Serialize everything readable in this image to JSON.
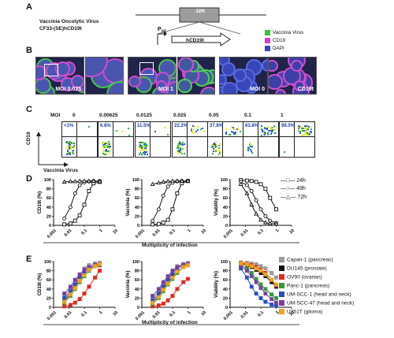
{
  "panelA": {
    "letter": "A",
    "virus_line1": "Vaccinia Oncolytic Virus",
    "virus_line2": "CF33-(SE)hCD19t",
    "gene": "J2R",
    "promoter_main": "P",
    "promoter_sub": "SE",
    "transgene": "hCD19t",
    "legend": [
      {
        "label": "Vaccinia Virus",
        "color": "#39c13c"
      },
      {
        "label": "CD19",
        "color": "#d63bd1"
      },
      {
        "label": "DAPI",
        "color": "#2f44c8"
      }
    ]
  },
  "panelB": {
    "letter": "B",
    "images": [
      "MOI 0.025",
      "",
      "MOI 1",
      "",
      "MOI 0",
      "CD19t"
    ]
  },
  "panelC": {
    "letter": "C",
    "moi_label": "MOI",
    "mois": [
      "0",
      "0.00625",
      "0.0125",
      "0.025",
      "0.05",
      "0.1",
      "1"
    ],
    "percents": [
      "<1%",
      "6.8%",
      "11.5%",
      "22.2%",
      "37.8%",
      "63.8%",
      "98.0%"
    ],
    "ylabel": "CD19",
    "xlabel": "Vaccinia Virus"
  },
  "panelD": {
    "letter": "D",
    "xlabel": "Multiplicity of infection",
    "legend": [
      "24h",
      "48h",
      "72h"
    ]
  },
  "panelE": {
    "letter": "E",
    "xlabel": "Multiplicity of infection",
    "legend": [
      {
        "label": "Capan-1 (pancreas)",
        "color": "#9a9a9a"
      },
      {
        "label": "DU145 (prostate)",
        "color": "#111111"
      },
      {
        "label": "OV90 (ovarian)",
        "color": "#e0281e"
      },
      {
        "label": "Panc-1 (pancreas)",
        "color": "#2e9b3a"
      },
      {
        "label": "UM-SCC-1 (head and neck)",
        "color": "#2a4fc0"
      },
      {
        "label": "UM-SCC-47 (head and neck)",
        "color": "#7b3fa0"
      },
      {
        "label": "U251T (glioma)",
        "color": "#f0a21c"
      }
    ]
  },
  "chart_data": [
    {
      "type": "line",
      "panel": "D",
      "ylabel": "CD19t (%)",
      "xlabel": "Multiplicity of infection",
      "xscale": "log",
      "xlim": [
        0.001,
        10
      ],
      "ylim": [
        0,
        100
      ],
      "xticks": [
        "0.001",
        "0.01",
        "0.1",
        "1",
        "10"
      ],
      "yticks": [
        0,
        20,
        40,
        60,
        80,
        100
      ],
      "x": [
        0.005,
        0.0125,
        0.025,
        0.05,
        0.1,
        0.2,
        0.4,
        1
      ],
      "series": [
        {
          "name": "24h",
          "marker": "square",
          "values": [
            2,
            4,
            10,
            22,
            45,
            75,
            92,
            95
          ]
        },
        {
          "name": "48h",
          "marker": "circle",
          "values": [
            15,
            40,
            70,
            88,
            94,
            96,
            97,
            97
          ]
        },
        {
          "name": "72h",
          "marker": "triangle",
          "values": [
            95,
            96,
            96,
            97,
            97,
            97,
            97,
            96
          ]
        }
      ]
    },
    {
      "type": "line",
      "panel": "D",
      "ylabel": "Vaccinia (%)",
      "xlabel": "Multiplicity of infection",
      "xscale": "log",
      "xlim": [
        0.001,
        10
      ],
      "ylim": [
        0,
        100
      ],
      "xticks": [
        "0.001",
        "0.01",
        "0.1",
        "1",
        "10"
      ],
      "yticks": [
        0,
        20,
        40,
        60,
        80,
        100
      ],
      "x": [
        0.005,
        0.0125,
        0.025,
        0.05,
        0.1,
        0.2,
        0.4,
        1
      ],
      "series": [
        {
          "name": "24h",
          "marker": "square",
          "values": [
            2,
            3,
            6,
            12,
            35,
            70,
            92,
            97
          ]
        },
        {
          "name": "48h",
          "marker": "circle",
          "values": [
            10,
            35,
            65,
            85,
            93,
            96,
            97,
            97
          ]
        },
        {
          "name": "72h",
          "marker": "triangle",
          "values": [
            90,
            93,
            95,
            96,
            97,
            97,
            97,
            97
          ]
        }
      ]
    },
    {
      "type": "line",
      "panel": "D",
      "ylabel": "Viability (%)",
      "xlabel": "Multiplicity of infection",
      "xscale": "log",
      "xlim": [
        0.001,
        10
      ],
      "ylim": [
        0,
        100
      ],
      "xticks": [
        "0.001",
        "0.01",
        "0.1",
        "1",
        "10"
      ],
      "yticks": [
        0,
        20,
        40,
        60,
        80,
        100
      ],
      "x": [
        0.005,
        0.0125,
        0.025,
        0.05,
        0.1,
        0.2,
        0.4,
        1
      ],
      "series": [
        {
          "name": "24h",
          "marker": "square",
          "values": [
            99,
            98,
            97,
            95,
            90,
            80,
            60,
            35
          ]
        },
        {
          "name": "48h",
          "marker": "circle",
          "values": [
            95,
            88,
            75,
            55,
            35,
            20,
            10,
            5
          ]
        },
        {
          "name": "72h",
          "marker": "triangle",
          "values": [
            90,
            70,
            45,
            25,
            12,
            6,
            4,
            3
          ]
        }
      ]
    },
    {
      "type": "line",
      "panel": "E",
      "ylabel": "CD19t (%)",
      "xlabel": "Multiplicity of infection",
      "xscale": "log",
      "xlim": [
        0.001,
        10
      ],
      "ylim": [
        0,
        100
      ],
      "xticks": [
        "0.001",
        "0.01",
        "0.1",
        "1",
        "10"
      ],
      "yticks": [
        0,
        20,
        40,
        60,
        80,
        100
      ],
      "x": [
        0.005,
        0.0125,
        0.025,
        0.05,
        0.1,
        0.2,
        0.5,
        1
      ],
      "series": [
        {
          "name": "Capan-1 (pancreas)",
          "values": [
            25,
            40,
            55,
            70,
            85,
            92,
            96,
            97
          ]
        },
        {
          "name": "DU145 (prostate)",
          "values": [
            15,
            30,
            45,
            60,
            72,
            80,
            90,
            92
          ]
        },
        {
          "name": "OV90 (ovarian)",
          "values": [
            2,
            5,
            10,
            18,
            30,
            45,
            65,
            80
          ]
        },
        {
          "name": "Panc-1 (pancreas)",
          "values": [
            10,
            25,
            40,
            55,
            68,
            80,
            90,
            93
          ]
        },
        {
          "name": "UM-SCC-1 (head and neck)",
          "values": [
            20,
            35,
            50,
            65,
            78,
            85,
            92,
            95
          ]
        },
        {
          "name": "UM-SCC-47 (head and neck)",
          "values": [
            30,
            45,
            60,
            72,
            82,
            88,
            93,
            95
          ]
        },
        {
          "name": "U251T (glioma)",
          "values": [
            12,
            28,
            42,
            58,
            70,
            82,
            90,
            94
          ]
        }
      ]
    },
    {
      "type": "line",
      "panel": "E",
      "ylabel": "Vaccinia (%)",
      "xlabel": "Multiplicity of infection",
      "xscale": "log",
      "xlim": [
        0.001,
        10
      ],
      "ylim": [
        0,
        100
      ],
      "xticks": [
        "0.001",
        "0.01",
        "0.1",
        "1",
        "10"
      ],
      "yticks": [
        0,
        20,
        40,
        60,
        80,
        100
      ],
      "x": [
        0.005,
        0.0125,
        0.025,
        0.05,
        0.1,
        0.2,
        0.5,
        1
      ],
      "series": [
        {
          "name": "Capan-1 (pancreas)",
          "values": [
            20,
            35,
            50,
            65,
            80,
            90,
            95,
            97
          ]
        },
        {
          "name": "DU145 (prostate)",
          "values": [
            10,
            25,
            40,
            55,
            68,
            78,
            88,
            92
          ]
        },
        {
          "name": "OV90 (ovarian)",
          "values": [
            2,
            4,
            8,
            15,
            25,
            40,
            55,
            62
          ]
        },
        {
          "name": "Panc-1 (pancreas)",
          "values": [
            8,
            20,
            35,
            50,
            62,
            75,
            88,
            92
          ]
        },
        {
          "name": "UM-SCC-1 (head and neck)",
          "values": [
            15,
            30,
            45,
            60,
            75,
            85,
            92,
            95
          ]
        },
        {
          "name": "UM-SCC-47 (head and neck)",
          "values": [
            25,
            40,
            55,
            68,
            80,
            88,
            93,
            95
          ]
        },
        {
          "name": "U251T (glioma)",
          "values": [
            10,
            22,
            38,
            52,
            65,
            78,
            88,
            92
          ]
        }
      ]
    },
    {
      "type": "line",
      "panel": "E",
      "ylabel": "Viability (%)",
      "xlabel": "Multiplicity of infection",
      "xscale": "log",
      "xlim": [
        0.001,
        10
      ],
      "ylim": [
        0,
        100
      ],
      "xticks": [
        "0.001",
        "0.01",
        "0.1",
        "1",
        "10"
      ],
      "yticks": [
        0,
        20,
        40,
        60,
        80,
        100
      ],
      "x": [
        0.005,
        0.0125,
        0.025,
        0.05,
        0.1,
        0.2,
        0.5,
        1
      ],
      "series": [
        {
          "name": "Capan-1 (pancreas)",
          "values": [
            98,
            97,
            96,
            94,
            90,
            85,
            75,
            65
          ]
        },
        {
          "name": "DU145 (prostate)",
          "values": [
            95,
            92,
            88,
            82,
            75,
            68,
            55,
            45
          ]
        },
        {
          "name": "OV90 (ovarian)",
          "values": [
            97,
            95,
            92,
            88,
            82,
            75,
            60,
            48
          ]
        },
        {
          "name": "Panc-1 (pancreas)",
          "values": [
            92,
            85,
            75,
            62,
            50,
            40,
            28,
            20
          ]
        },
        {
          "name": "UM-SCC-1 (head and neck)",
          "values": [
            85,
            65,
            45,
            30,
            20,
            12,
            6,
            3
          ]
        },
        {
          "name": "UM-SCC-47 (head and neck)",
          "values": [
            90,
            80,
            68,
            55,
            42,
            30,
            18,
            10
          ]
        },
        {
          "name": "U251T (glioma)",
          "values": [
            96,
            94,
            90,
            85,
            80,
            72,
            60,
            50
          ]
        }
      ]
    }
  ]
}
